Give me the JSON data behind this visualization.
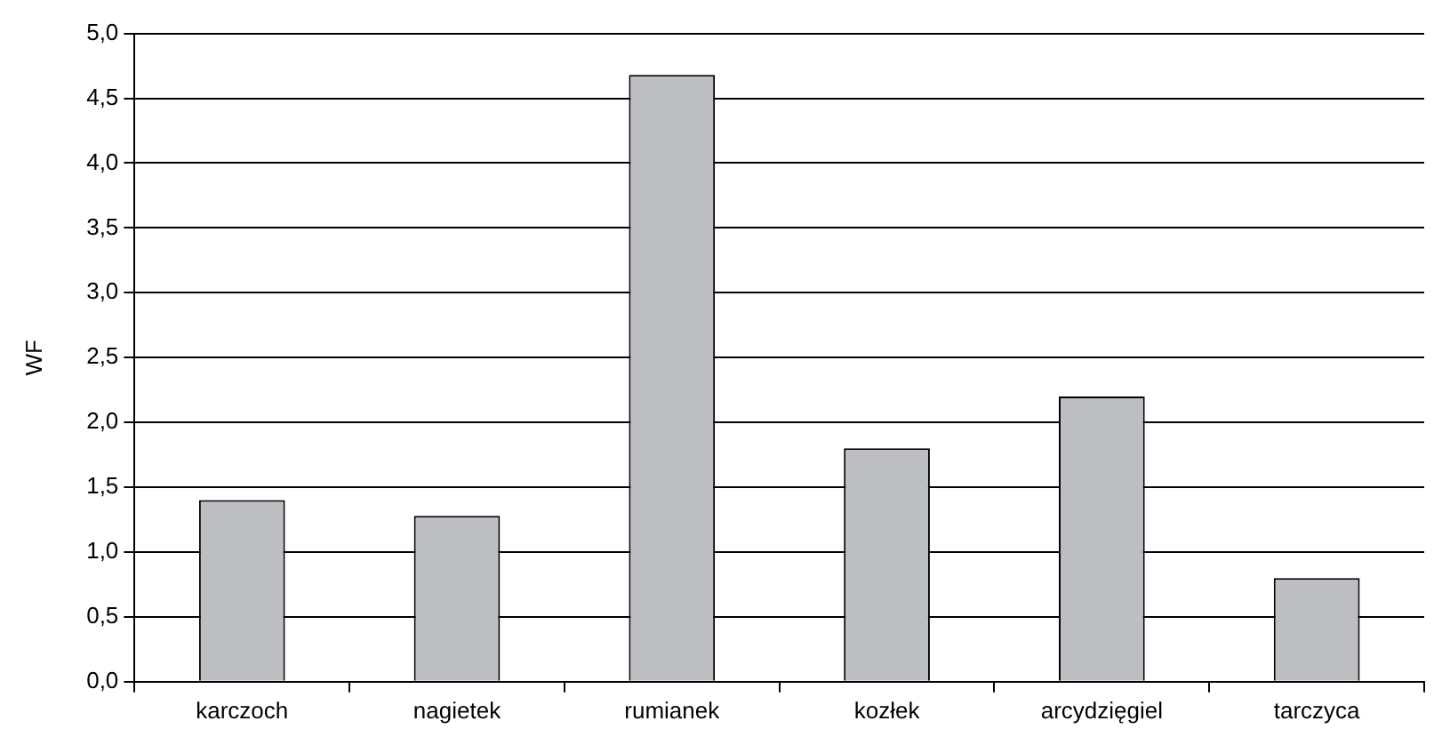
{
  "chart_data": {
    "type": "bar",
    "ylabel": "WF",
    "categories": [
      "karczoch",
      "nagietek",
      "rumianek",
      "kozłek",
      "arcydzięgiel",
      "tarczyca"
    ],
    "values": [
      1.4,
      1.28,
      4.68,
      1.8,
      2.2,
      0.8
    ],
    "color": "#bdbec2",
    "ylim": [
      0,
      5
    ],
    "yticks": [
      {
        "value": 0,
        "label": "0,0"
      },
      {
        "value": 0.5,
        "label": "0,5"
      },
      {
        "value": 1,
        "label": "1,0"
      },
      {
        "value": 1.5,
        "label": "1,5"
      },
      {
        "value": 2,
        "label": "2,0"
      },
      {
        "value": 2.5,
        "label": "2,5"
      },
      {
        "value": 3,
        "label": "3,0"
      },
      {
        "value": 3.5,
        "label": "3,5"
      },
      {
        "value": 4,
        "label": "4,0"
      },
      {
        "value": 4.5,
        "label": "4,5"
      },
      {
        "value": 5,
        "label": "5,0"
      }
    ],
    "grid": "y"
  }
}
